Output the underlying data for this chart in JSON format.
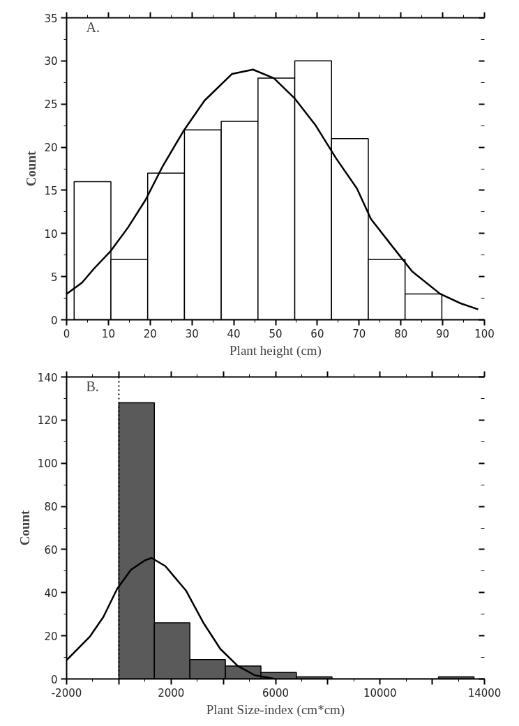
{
  "chart_data": [
    {
      "type": "histogram",
      "xlabel": "Plant height (cm)",
      "ylabel": "Count",
      "annotations": [
        "A."
      ],
      "bins": [
        1.8,
        10.6,
        19.4,
        28.2,
        37.0,
        45.8,
        54.6,
        63.4,
        72.2,
        81.0,
        89.8
      ],
      "values": [
        16,
        7,
        17,
        22,
        23,
        28,
        30,
        21,
        7,
        3
      ],
      "color": "#ffffff",
      "series": [
        {
          "type": "line",
          "color": "#000000",
          "x": [
            0,
            3.7,
            6.5,
            10.6,
            14.7,
            18.9,
            23,
            28,
            33,
            39.6,
            44.6,
            49.6,
            54.5,
            59.5,
            64.5,
            69.5,
            72.8,
            77.8,
            82.7,
            89.4,
            94.3,
            98.5
          ],
          "values": [
            3.0,
            4.3,
            5.9,
            8.0,
            10.7,
            13.9,
            17.8,
            21.9,
            25.4,
            28.5,
            29.0,
            28.0,
            25.7,
            22.6,
            18.7,
            15.2,
            11.7,
            8.6,
            5.6,
            3.0,
            1.9,
            1.2
          ]
        }
      ],
      "xlim": [
        0,
        100
      ],
      "xticks": [
        0,
        10,
        20,
        30,
        40,
        50,
        60,
        70,
        80,
        90,
        100
      ],
      "ylim": [
        0,
        35
      ],
      "yticks": [
        0,
        5,
        10,
        15,
        20,
        25,
        30,
        35
      ],
      "grid": false,
      "line_style": "solid",
      "marker": "none"
    },
    {
      "type": "histogram",
      "xlabel": "Plant Size-index (cm*cm)",
      "ylabel": "Count",
      "annotations": [
        "B."
      ],
      "bins": [
        0,
        1360,
        2720,
        4080,
        5440,
        6800,
        8160,
        9520,
        10880,
        12240,
        13600
      ],
      "values": [
        128,
        26,
        9,
        6,
        3,
        1,
        0,
        0,
        0,
        1
      ],
      "color": "#5a5a5a",
      "series": [
        {
          "type": "line",
          "color": "#000000",
          "x": [
            -2000,
            -1118,
            -591,
            -64,
            463,
            990,
            1253,
            1780,
            2569,
            3228,
            3886,
            4545,
            5203,
            5993
          ],
          "values": [
            8.7,
            19.5,
            28.8,
            41.8,
            50.6,
            54.9,
            56.1,
            52.3,
            41,
            26.2,
            13.9,
            6.1,
            1.7,
            0
          ]
        }
      ],
      "ref_lines": [
        {
          "axis": "x",
          "value": 0,
          "label": null,
          "color": "#000000",
          "line_style": "dotted"
        }
      ],
      "xlim": [
        -2000,
        14000
      ],
      "xticks": [
        -2000,
        {
          "value": 0,
          "label": null
        },
        2000,
        {
          "value": 4000,
          "label": null
        },
        6000,
        {
          "value": 8000,
          "label": null
        },
        10000,
        {
          "value": 12000,
          "label": null
        },
        14000
      ],
      "ylim": [
        0,
        140
      ],
      "yticks": [
        0,
        20,
        40,
        60,
        80,
        100,
        120,
        140
      ],
      "grid": false,
      "line_style": "solid",
      "marker": "none"
    }
  ]
}
